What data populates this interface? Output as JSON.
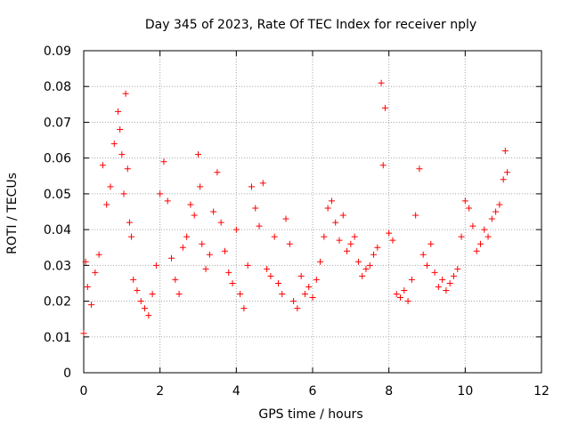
{
  "chart_data": {
    "type": "scatter",
    "title": "Day 345 of 2023, Rate Of TEC Index for receiver nply",
    "xlabel": "GPS time / hours",
    "ylabel": "ROTI / TECUs",
    "xlim": [
      0,
      12
    ],
    "ylim": [
      0,
      0.09
    ],
    "grid": true,
    "marker": "+",
    "color": "#ff0000",
    "x_ticks": [
      0,
      2,
      4,
      6,
      8,
      10,
      12
    ],
    "x_tick_labels": [
      "0",
      "2",
      "4",
      "6",
      "8",
      "10",
      "12"
    ],
    "y_ticks": [
      0,
      0.01,
      0.02,
      0.03,
      0.04,
      0.05,
      0.06,
      0.07,
      0.08,
      0.09
    ],
    "y_tick_labels": [
      "0",
      "0.01",
      "0.02",
      "0.03",
      "0.04",
      "0.05",
      "0.06",
      "0.07",
      "0.08",
      "0.09"
    ],
    "series": [
      {
        "name": "ROTI",
        "x": [
          0.0,
          0.05,
          0.1,
          0.2,
          0.3,
          0.4,
          0.5,
          0.6,
          0.7,
          0.8,
          0.9,
          0.95,
          1.0,
          1.05,
          1.1,
          1.15,
          1.2,
          1.25,
          1.3,
          1.4,
          1.5,
          1.6,
          1.7,
          1.8,
          1.9,
          2.0,
          2.1,
          2.2,
          2.3,
          2.4,
          2.5,
          2.6,
          2.7,
          2.8,
          2.9,
          3.0,
          3.05,
          3.1,
          3.2,
          3.3,
          3.4,
          3.5,
          3.6,
          3.7,
          3.8,
          3.9,
          4.0,
          4.1,
          4.2,
          4.3,
          4.4,
          4.5,
          4.6,
          4.7,
          4.8,
          4.9,
          5.0,
          5.1,
          5.2,
          5.3,
          5.4,
          5.5,
          5.6,
          5.7,
          5.8,
          5.9,
          6.0,
          6.1,
          6.2,
          6.3,
          6.4,
          6.5,
          6.6,
          6.7,
          6.8,
          6.9,
          7.0,
          7.1,
          7.2,
          7.3,
          7.4,
          7.5,
          7.6,
          7.7,
          7.8,
          7.85,
          7.9,
          8.0,
          8.1,
          8.2,
          8.3,
          8.4,
          8.5,
          8.6,
          8.7,
          8.8,
          8.9,
          9.0,
          9.1,
          9.2,
          9.3,
          9.4,
          9.5,
          9.6,
          9.7,
          9.8,
          9.9,
          10.0,
          10.1,
          10.2,
          10.3,
          10.4,
          10.5,
          10.6,
          10.7,
          10.8,
          10.9,
          11.0,
          11.05,
          11.1
        ],
        "y": [
          0.011,
          0.031,
          0.024,
          0.019,
          0.028,
          0.033,
          0.058,
          0.047,
          0.052,
          0.064,
          0.073,
          0.068,
          0.061,
          0.05,
          0.078,
          0.057,
          0.042,
          0.038,
          0.026,
          0.023,
          0.02,
          0.018,
          0.016,
          0.022,
          0.03,
          0.05,
          0.059,
          0.048,
          0.032,
          0.026,
          0.022,
          0.035,
          0.038,
          0.047,
          0.044,
          0.061,
          0.052,
          0.036,
          0.029,
          0.033,
          0.045,
          0.056,
          0.042,
          0.034,
          0.028,
          0.025,
          0.04,
          0.022,
          0.018,
          0.03,
          0.052,
          0.046,
          0.041,
          0.053,
          0.029,
          0.027,
          0.038,
          0.025,
          0.022,
          0.043,
          0.036,
          0.02,
          0.018,
          0.027,
          0.022,
          0.024,
          0.021,
          0.026,
          0.031,
          0.038,
          0.046,
          0.048,
          0.042,
          0.037,
          0.044,
          0.034,
          0.036,
          0.038,
          0.031,
          0.027,
          0.029,
          0.03,
          0.033,
          0.035,
          0.081,
          0.058,
          0.074,
          0.039,
          0.037,
          0.022,
          0.021,
          0.023,
          0.02,
          0.026,
          0.044,
          0.057,
          0.033,
          0.03,
          0.036,
          0.028,
          0.024,
          0.026,
          0.023,
          0.025,
          0.027,
          0.029,
          0.038,
          0.048,
          0.046,
          0.041,
          0.034,
          0.036,
          0.04,
          0.038,
          0.043,
          0.045,
          0.047,
          0.054,
          0.062,
          0.056
        ]
      }
    ]
  }
}
